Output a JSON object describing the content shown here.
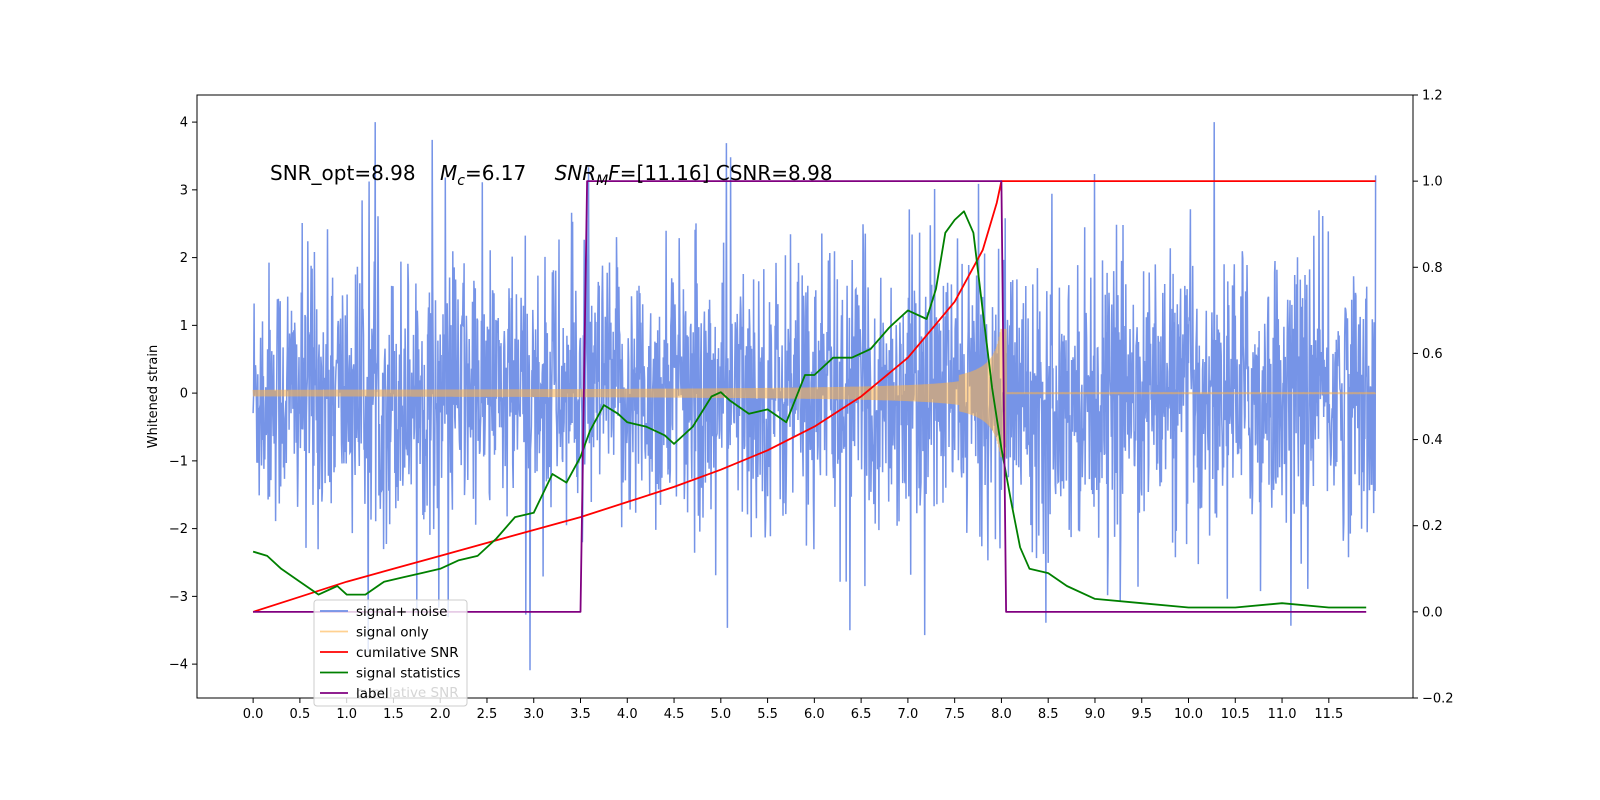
{
  "chart_data": {
    "type": "line",
    "title": "",
    "xlabel": "",
    "ylabel": "Whitened strain",
    "xlim": [
      -0.6,
      12.4
    ],
    "ylim": [
      -4.5,
      4.4
    ],
    "y2lim": [
      -0.2,
      1.2
    ],
    "x_ticks": [
      0.0,
      0.5,
      1.0,
      1.5,
      2.0,
      2.5,
      3.0,
      3.5,
      4.0,
      4.5,
      5.0,
      5.5,
      6.0,
      6.5,
      7.0,
      7.5,
      8.0,
      8.5,
      9.0,
      9.5,
      10.0,
      10.5,
      11.0,
      11.5
    ],
    "x_tick_labels": [
      "0.0",
      "0.5",
      "1.0",
      "1.5",
      "2.0",
      "2.5",
      "3.0",
      "3.5",
      "4.0",
      "4.5",
      "5.0",
      "5.5",
      "6.0",
      "6.5",
      "7.0",
      "7.5",
      "8.0",
      "8.5",
      "9.0",
      "9.5",
      "10.0",
      "10.5",
      "11.0",
      "11.5"
    ],
    "y_ticks": [
      -4,
      -3,
      -2,
      -1,
      0,
      1,
      2,
      3,
      4
    ],
    "y_tick_labels": [
      "−4",
      "−3",
      "−2",
      "−1",
      "0",
      "1",
      "2",
      "3",
      "4"
    ],
    "y2_ticks": [
      -0.2,
      0.0,
      0.2,
      0.4,
      0.6,
      0.8,
      1.0,
      1.2
    ],
    "y2_tick_labels": [
      "−0.2",
      "0.0",
      "0.2",
      "0.4",
      "0.6",
      "0.8",
      "1.0",
      "1.2"
    ],
    "annotation": {
      "part1": "SNR_opt=8.98",
      "mc_symbol": "M",
      "mc_sub": "c",
      "mc_value": "=6.17",
      "snr_symbol": "SNR",
      "snr_sub": "M",
      "snr_f": "F",
      "snr_value": "=[11.16] CSNR=8.98"
    },
    "legend": {
      "location": "lower left",
      "entries": [
        "signal+ noise",
        "signal only",
        "cumilative SNR",
        "signal statistics",
        "label"
      ],
      "ghost_text": "cumilative SNR"
    },
    "series": [
      {
        "name": "signal+ noise",
        "axis": "left",
        "color": "#6f8ee6",
        "x_range": [
          0.0,
          12.0
        ],
        "inner_amplitude": 1.6,
        "outer_peak_max": 4.0,
        "outer_peak_min": -4.1
      },
      {
        "name": "signal only",
        "axis": "left",
        "color": "#ffb347",
        "chirp_start": 0.0,
        "chirp_end": 8.05,
        "amplitude_start": 0.02,
        "amplitude_peak": 0.6
      },
      {
        "name": "cumilative SNR",
        "axis": "right",
        "color": "#ff0000",
        "x": [
          0.0,
          0.5,
          1.0,
          1.5,
          2.0,
          2.5,
          3.0,
          3.5,
          4.0,
          4.5,
          5.0,
          5.5,
          6.0,
          6.5,
          7.0,
          7.5,
          7.8,
          7.95,
          8.0,
          8.05,
          12.0
        ],
        "values": [
          0.0,
          0.035,
          0.07,
          0.1,
          0.13,
          0.16,
          0.19,
          0.22,
          0.255,
          0.29,
          0.33,
          0.375,
          0.43,
          0.5,
          0.59,
          0.72,
          0.84,
          0.95,
          1.0,
          1.0,
          1.0
        ]
      },
      {
        "name": "signal statistics",
        "axis": "right",
        "color": "#008000",
        "x": [
          0.0,
          0.15,
          0.3,
          0.5,
          0.7,
          0.9,
          1.0,
          1.2,
          1.4,
          1.6,
          1.8,
          2.0,
          2.2,
          2.4,
          2.6,
          2.8,
          3.0,
          3.2,
          3.35,
          3.5,
          3.6,
          3.75,
          3.9,
          4.0,
          4.2,
          4.4,
          4.5,
          4.7,
          4.9,
          5.0,
          5.1,
          5.3,
          5.5,
          5.7,
          5.9,
          6.0,
          6.2,
          6.4,
          6.6,
          6.8,
          6.9,
          7.0,
          7.2,
          7.3,
          7.4,
          7.5,
          7.6,
          7.7,
          7.8,
          7.9,
          8.0,
          8.1,
          8.2,
          8.3,
          8.5,
          8.7,
          9.0,
          9.5,
          10.0,
          10.5,
          11.0,
          11.5,
          11.9
        ],
        "values": [
          0.14,
          0.13,
          0.1,
          0.07,
          0.04,
          0.06,
          0.04,
          0.04,
          0.07,
          0.08,
          0.09,
          0.1,
          0.12,
          0.13,
          0.17,
          0.22,
          0.23,
          0.32,
          0.3,
          0.36,
          0.42,
          0.48,
          0.46,
          0.44,
          0.43,
          0.41,
          0.39,
          0.43,
          0.5,
          0.51,
          0.49,
          0.46,
          0.47,
          0.44,
          0.55,
          0.55,
          0.59,
          0.59,
          0.61,
          0.66,
          0.68,
          0.7,
          0.68,
          0.75,
          0.88,
          0.91,
          0.93,
          0.88,
          0.7,
          0.52,
          0.38,
          0.26,
          0.15,
          0.1,
          0.09,
          0.06,
          0.03,
          0.02,
          0.01,
          0.01,
          0.02,
          0.01,
          0.01
        ]
      },
      {
        "name": "label",
        "axis": "right",
        "color": "#800080",
        "x": [
          0.0,
          3.5,
          3.57,
          8.0,
          8.05,
          11.9
        ],
        "values": [
          0.0,
          0.0,
          1.0,
          1.0,
          0.0,
          0.0
        ]
      }
    ]
  }
}
